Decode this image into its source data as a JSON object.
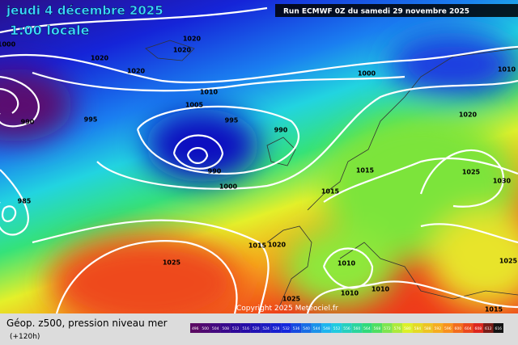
{
  "header": {
    "date": "jeudi 4 décembre 2025",
    "time": "1:00 locale",
    "run": "Run ECMWF 0Z du samedi 29 novembre 2025"
  },
  "copyright": "Copyright 2025 Meteociel.fr",
  "legend": {
    "title": "Géop. z500, pression niveau mer",
    "lead": "(+120h)",
    "labels": [
      "496",
      "500",
      "504",
      "508",
      "512",
      "516",
      "520",
      "524",
      "528",
      "532",
      "536",
      "540",
      "544",
      "548",
      "552",
      "556",
      "560",
      "564",
      "568",
      "572",
      "576",
      "580",
      "584",
      "588",
      "592",
      "596",
      "600",
      "604",
      "608",
      "612",
      "616"
    ]
  },
  "isobars": [
    "1000",
    "1020",
    "1020",
    "1020",
    "1020",
    "1000",
    "1010",
    "1010",
    "1005",
    "990",
    "995",
    "995",
    "990",
    "1020",
    "1000",
    "990",
    "1015",
    "1025",
    "1030",
    "1015",
    "985",
    "1015",
    "1020",
    "1025",
    "1010",
    "1025",
    "1010",
    "1010",
    "1025",
    "1015"
  ]
}
